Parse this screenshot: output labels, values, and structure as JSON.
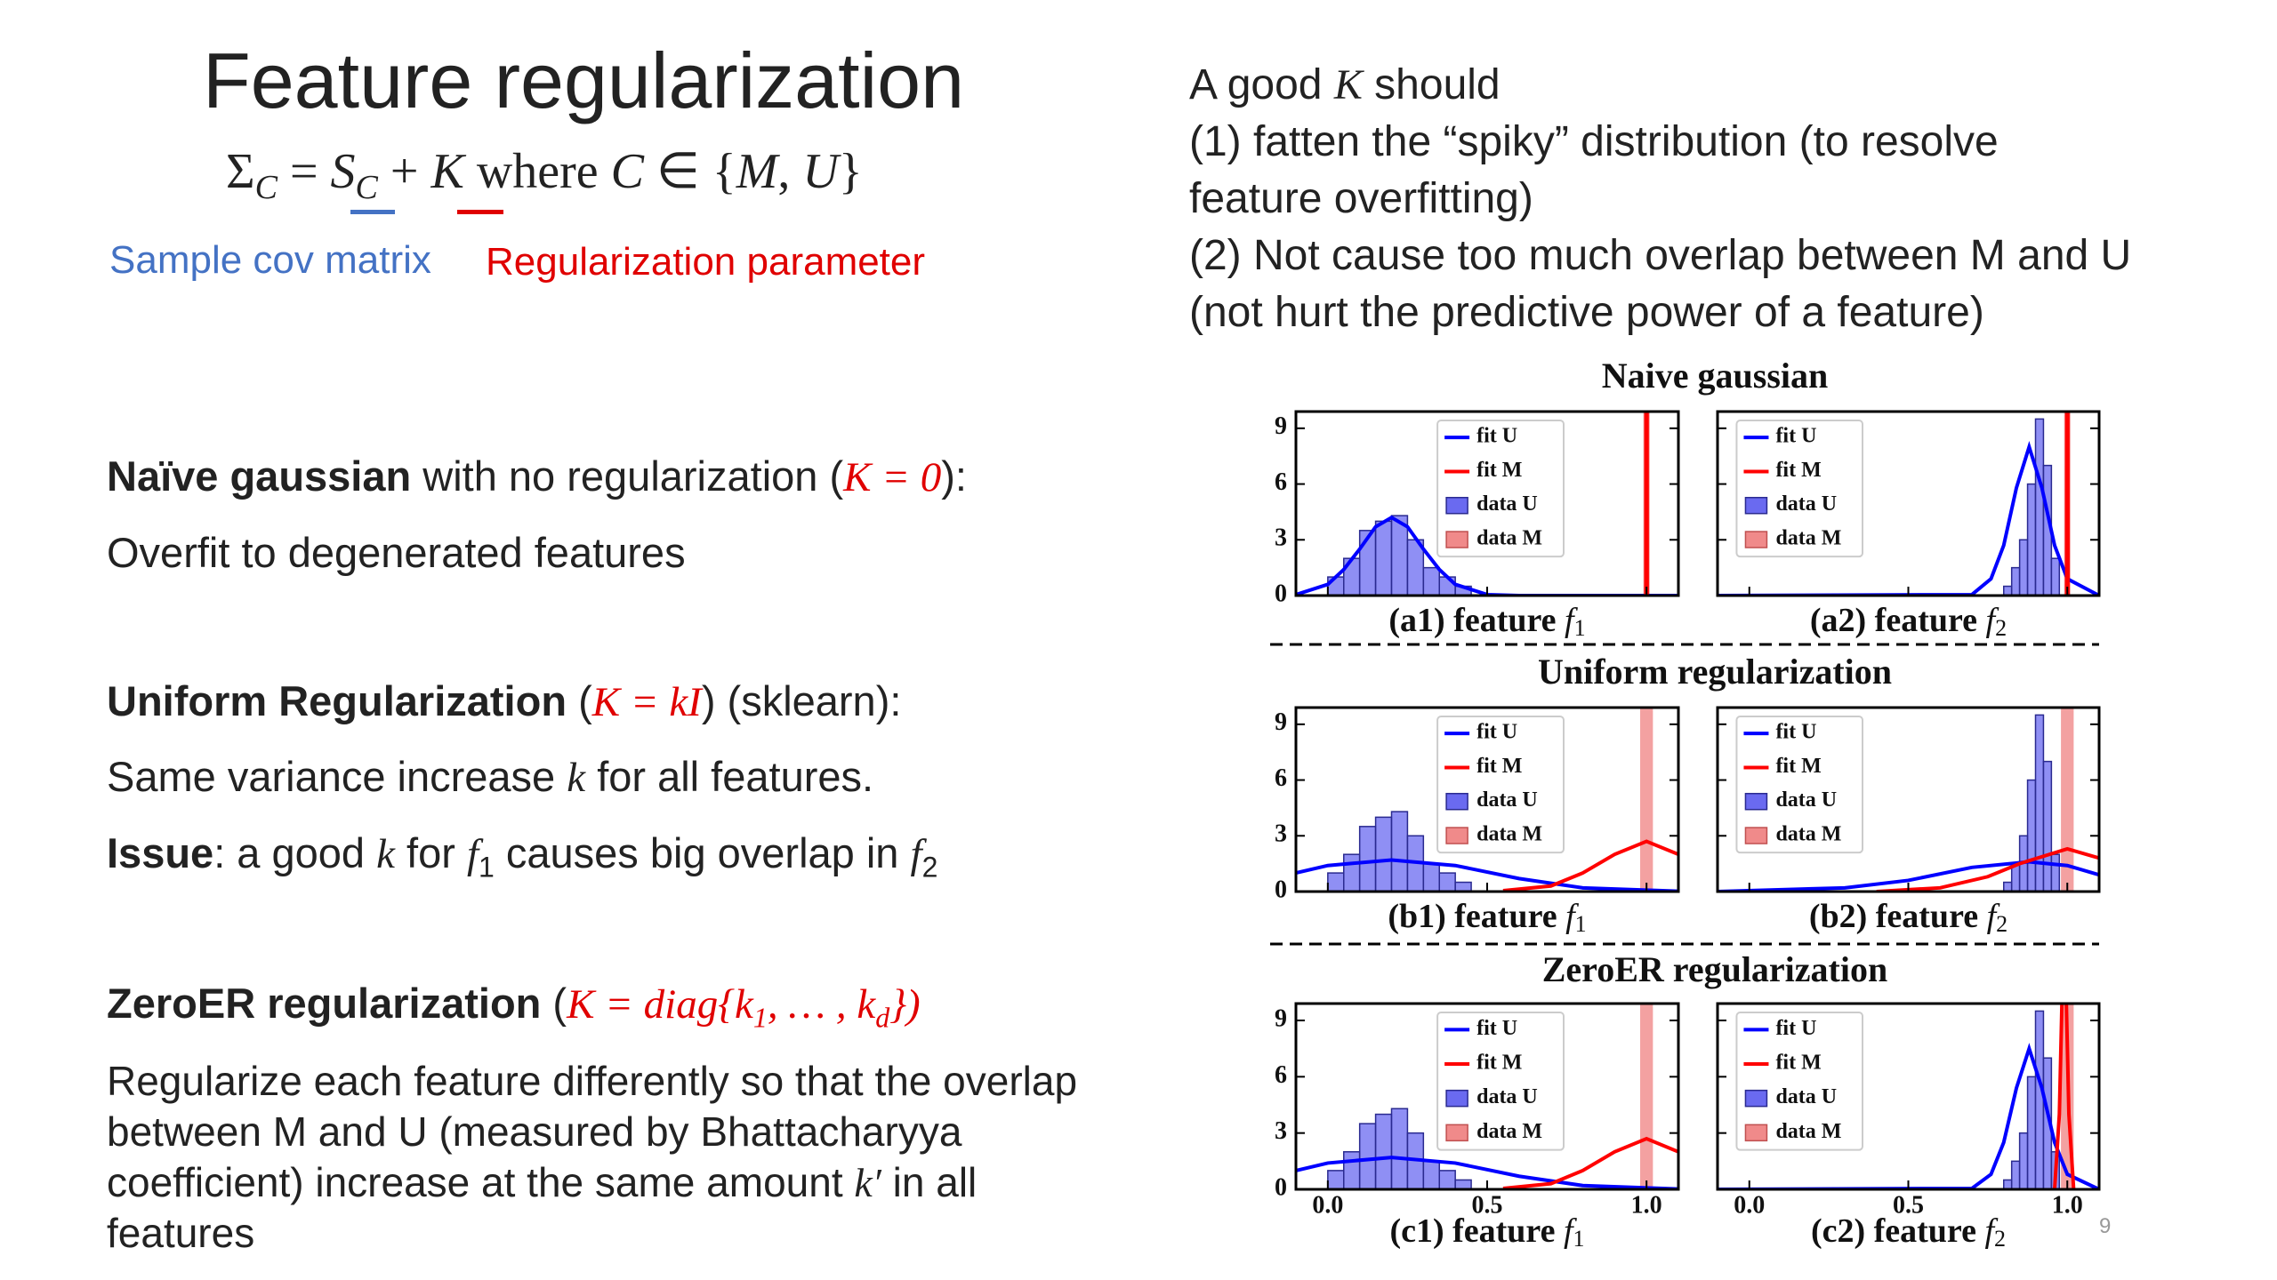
{
  "title": "Feature regularization",
  "formula": [
    "Σ",
    "C",
    " = ",
    "S",
    "C",
    " + ",
    "K",
    " where ",
    "C",
    " ∈ {",
    "M",
    ", ",
    "U",
    "}"
  ],
  "formula_notes": [
    "Sample cov matrix",
    "Regularization parameter"
  ],
  "left": {
    "s1_head": [
      "Naïve gaussian",
      " with no regularization (",
      "K = 0",
      "):"
    ],
    "s1_body": [
      "Overfit to degenerated features"
    ],
    "s2_head": [
      "Uniform Regularization",
      " (",
      "K = kI",
      ") (sklearn):"
    ],
    "s2_body1": [
      "Same variance increase ",
      "k",
      " for all features."
    ],
    "s2_body2": [
      "Issue",
      ": a good ",
      "k",
      " for ",
      "f",
      "1",
      " causes big overlap in ",
      "f",
      "2"
    ],
    "s3_head": [
      "ZeroER regularization",
      " (",
      "K = diag{k",
      "1",
      ", … , k",
      "d",
      "})"
    ],
    "s3_body": [
      "Regularize each feature differently so that the overlap",
      "between M and U (measured by Bhattacharyya",
      "coefficient) increase at the same amount ",
      "k′",
      " in all",
      "features"
    ]
  },
  "right": {
    "first": [
      "A good ",
      "K",
      " should"
    ],
    "lines": [
      "(1) fatten the “spiky” distribution (to resolve",
      "feature overfitting)",
      "(2) Not cause too much overlap between M and U",
      "(not hurt the predictive power of a feature)"
    ]
  },
  "figure": {
    "legend": [
      "fit U",
      "fit M",
      "data U",
      "data M"
    ],
    "colors": {
      "fit_u": "#0000ff",
      "fit_m": "#ff0000",
      "data_u": "#6a6af0",
      "data_m": "#f08a8a"
    },
    "xlim": [
      -0.1,
      1.1
    ],
    "ylim": [
      0,
      9.9
    ],
    "yticks": [
      0,
      3,
      6,
      9
    ],
    "xticks": [
      {
        "value": 0,
        "label": "0.0"
      },
      {
        "value": 0.5,
        "label": "0.5"
      },
      {
        "value": 1,
        "label": "1.0"
      }
    ],
    "rows": [
      {
        "title": "Naive gaussian",
        "panels": [
          {
            "caption": [
              "(a1) feature ",
              "f",
              "1"
            ],
            "hist_u": {
              "bins": [
                0,
                0.05,
                0.1,
                0.15,
                0.2,
                0.25,
                0.3,
                0.35,
                0.4,
                0.45
              ],
              "counts": [
                1,
                2,
                3.5,
                4,
                4.3,
                3,
                1.5,
                1,
                0.5
              ]
            },
            "hist_m": {
              "bins": [
                0.99,
                1.01
              ],
              "counts": [
                40
              ]
            },
            "fit_u": {
              "x": [
                -0.1,
                0,
                0.05,
                0.1,
                0.15,
                0.2,
                0.25,
                0.3,
                0.35,
                0.4,
                0.5,
                0.6,
                1.1
              ],
              "y": [
                0.05,
                0.6,
                1.4,
                2.5,
                3.7,
                4.2,
                3.7,
                2.5,
                1.4,
                0.6,
                0.05,
                0,
                0
              ]
            },
            "fit_m": {
              "x": [
                0.998,
                1.0,
                1.002
              ],
              "y": [
                0,
                60,
                0
              ]
            }
          },
          {
            "caption": [
              "(a2) feature ",
              "f",
              "2"
            ],
            "hist_u": {
              "bins": [
                0.8,
                0.825,
                0.85,
                0.875,
                0.9,
                0.925,
                0.95,
                0.975
              ],
              "counts": [
                0.5,
                1.5,
                3,
                6,
                9.5,
                7,
                2
              ]
            },
            "hist_m": {
              "bins": [
                0.99,
                1.01
              ],
              "counts": [
                40
              ]
            },
            "fit_u": {
              "x": [
                -0.1,
                0.7,
                0.76,
                0.8,
                0.84,
                0.88,
                0.92,
                0.96,
                1.0,
                1.1
              ],
              "y": [
                0,
                0.05,
                0.9,
                2.7,
                5.8,
                8,
                5.8,
                2.7,
                0.9,
                0
              ]
            },
            "fit_m": {
              "x": [
                0.998,
                1.0,
                1.002
              ],
              "y": [
                0,
                60,
                0
              ]
            }
          }
        ]
      },
      {
        "title": "Uniform regularization",
        "panels": [
          {
            "caption": [
              "(b1) feature ",
              "f",
              "1"
            ],
            "hist_u": {
              "bins": [
                0,
                0.05,
                0.1,
                0.15,
                0.2,
                0.25,
                0.3,
                0.35,
                0.4,
                0.45
              ],
              "counts": [
                1,
                2,
                3.5,
                4,
                4.3,
                3,
                1.5,
                1,
                0.5
              ]
            },
            "hist_m": {
              "bins": [
                0.98,
                1.02
              ],
              "counts": [
                40
              ]
            },
            "fit_u": {
              "x": [
                -0.1,
                0,
                0.2,
                0.4,
                0.6,
                0.8,
                1.1
              ],
              "y": [
                1.0,
                1.4,
                1.7,
                1.4,
                0.7,
                0.2,
                0.02
              ]
            },
            "fit_m": {
              "x": [
                0.55,
                0.7,
                0.8,
                0.9,
                1.0,
                1.1
              ],
              "y": [
                0.05,
                0.3,
                1.0,
                2.0,
                2.7,
                2.0
              ]
            }
          },
          {
            "caption": [
              "(b2) feature ",
              "f",
              "2"
            ],
            "hist_u": {
              "bins": [
                0.8,
                0.825,
                0.85,
                0.875,
                0.9,
                0.925,
                0.95,
                0.975
              ],
              "counts": [
                0.5,
                1.5,
                3,
                6,
                9.5,
                7,
                2
              ]
            },
            "hist_m": {
              "bins": [
                0.98,
                1.02
              ],
              "counts": [
                40
              ]
            },
            "fit_u": {
              "x": [
                -0.1,
                0.3,
                0.5,
                0.7,
                0.88,
                1.0,
                1.1
              ],
              "y": [
                0,
                0.2,
                0.6,
                1.3,
                1.6,
                1.4,
                0.9
              ]
            },
            "fit_m": {
              "x": [
                0.4,
                0.6,
                0.75,
                0.85,
                1.0,
                1.1
              ],
              "y": [
                0,
                0.2,
                0.8,
                1.5,
                2.3,
                1.8
              ]
            }
          }
        ]
      },
      {
        "title": "ZeroER regularization",
        "panels": [
          {
            "caption": [
              "(c1) feature ",
              "f",
              "1"
            ],
            "hist_u": {
              "bins": [
                0,
                0.05,
                0.1,
                0.15,
                0.2,
                0.25,
                0.3,
                0.35,
                0.4,
                0.45
              ],
              "counts": [
                1,
                2,
                3.5,
                4,
                4.3,
                3,
                1.5,
                1,
                0.5
              ]
            },
            "hist_m": {
              "bins": [
                0.98,
                1.02
              ],
              "counts": [
                40
              ]
            },
            "fit_u": {
              "x": [
                -0.1,
                0,
                0.2,
                0.4,
                0.6,
                0.8,
                1.1
              ],
              "y": [
                1.0,
                1.4,
                1.7,
                1.4,
                0.7,
                0.2,
                0.02
              ]
            },
            "fit_m": {
              "x": [
                0.55,
                0.7,
                0.8,
                0.9,
                1.0,
                1.1
              ],
              "y": [
                0.05,
                0.3,
                1.0,
                2.0,
                2.7,
                2.0
              ]
            }
          },
          {
            "caption": [
              "(c2) feature ",
              "f",
              "2"
            ],
            "hist_u": {
              "bins": [
                0.8,
                0.825,
                0.85,
                0.875,
                0.9,
                0.925,
                0.95,
                0.975
              ],
              "counts": [
                0.5,
                1.5,
                3,
                6,
                9.5,
                7,
                2
              ]
            },
            "hist_m": {
              "bins": [
                0.98,
                1.02
              ],
              "counts": [
                40
              ]
            },
            "fit_u": {
              "x": [
                -0.1,
                0.7,
                0.76,
                0.8,
                0.84,
                0.88,
                0.92,
                0.96,
                1.0,
                1.1
              ],
              "y": [
                0,
                0.05,
                0.8,
                2.5,
                5.4,
                7.5,
                5.4,
                2.5,
                0.8,
                0
              ]
            },
            "fit_m": {
              "x": [
                0.96,
                0.975,
                0.99,
                1.005,
                1.02
              ],
              "y": [
                0,
                4,
                15,
                4,
                0
              ]
            }
          }
        ]
      }
    ]
  },
  "page_number": "9"
}
